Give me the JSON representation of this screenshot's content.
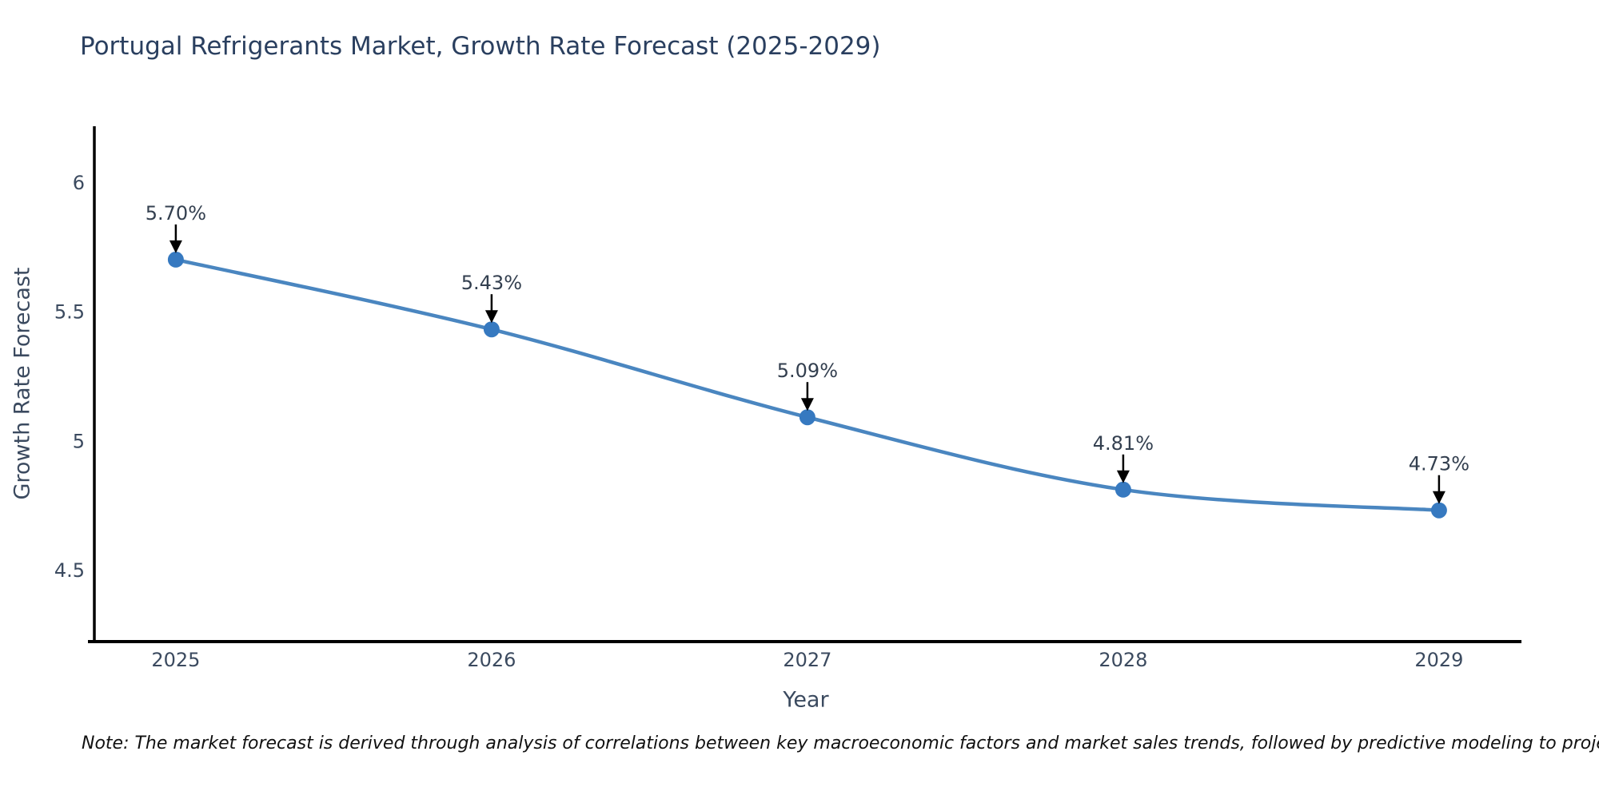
{
  "page": {
    "note": "Note: The market forecast is derived through analysis of correlations between key macroeconomic factors and market sales trends, followed by predictive modeling to project future sales"
  },
  "chart_data": {
    "type": "line",
    "title": "Portugal Refrigerants Market, Growth Rate Forecast (2025-2029)",
    "xlabel": "Year",
    "ylabel": "Growth Rate Forecast",
    "categories": [
      "2025",
      "2026",
      "2027",
      "2028",
      "2029"
    ],
    "x": [
      2025,
      2026,
      2027,
      2028,
      2029
    ],
    "values": [
      5.7,
      5.43,
      5.09,
      4.81,
      4.73
    ],
    "point_labels": [
      "5.70%",
      "5.43%",
      "5.09%",
      "4.81%",
      "4.73%"
    ],
    "yticks": [
      4.5,
      5,
      5.5,
      6
    ],
    "ytick_labels": [
      "4.5",
      "5",
      "5.5",
      "6"
    ],
    "xlim": [
      2024.742,
      2029.261
    ],
    "ylim": [
      4.222,
      6.216
    ],
    "grid": false,
    "legend": "none",
    "line_shape": "spline",
    "annotations_have_arrows": true,
    "colors": {
      "line": "#4a86c0",
      "marker": "#3679c0",
      "axis": "#000000",
      "tick_text": "#3b4a5f",
      "title_text": "#2a3f5f",
      "annotation_text": "#333f4f",
      "arrow": "#000000",
      "background": "#ffffff"
    }
  }
}
